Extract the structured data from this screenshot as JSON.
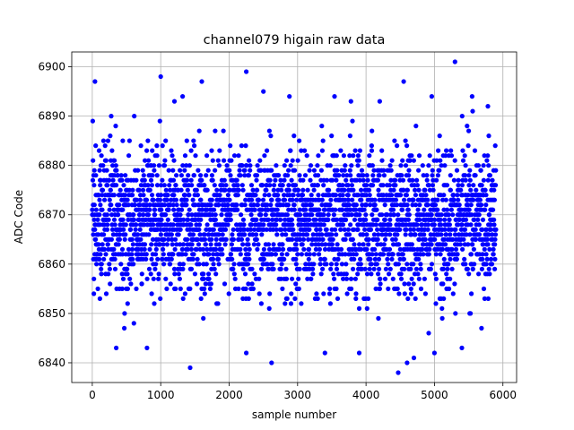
{
  "chart_data": {
    "type": "scatter",
    "title": "channel079 higain raw data",
    "xlabel": "sample number",
    "ylabel": "ADC Code",
    "xlim": [
      -300,
      6200
    ],
    "ylim": [
      6836,
      6903
    ],
    "xticks": [
      0,
      1000,
      2000,
      3000,
      4000,
      5000,
      6000
    ],
    "xtick_labels": [
      "0",
      "1000",
      "2000",
      "3000",
      "4000",
      "5000",
      "6000"
    ],
    "yticks": [
      6840,
      6850,
      6860,
      6870,
      6880,
      6890,
      6900
    ],
    "ytick_labels": [
      "6840",
      "6850",
      "6860",
      "6870",
      "6880",
      "6890",
      "6900"
    ],
    "grid": true,
    "marker_color": "#0000ff",
    "series": [
      {
        "n_points": 5900,
        "x_range": [
          0,
          5900
        ],
        "typical_band": [
          6852,
          6885
        ],
        "center": 6869,
        "notable_points": [
          {
            "x": 40,
            "y": 6897
          },
          {
            "x": 1000,
            "y": 6898
          },
          {
            "x": 1600,
            "y": 6897
          },
          {
            "x": 2250,
            "y": 6899
          },
          {
            "x": 5300,
            "y": 6901
          },
          {
            "x": 4550,
            "y": 6897
          },
          {
            "x": 1430,
            "y": 6839
          },
          {
            "x": 2620,
            "y": 6840
          },
          {
            "x": 4470,
            "y": 6838
          },
          {
            "x": 4600,
            "y": 6840
          },
          {
            "x": 4700,
            "y": 6841
          },
          {
            "x": 5000,
            "y": 6842
          },
          {
            "x": 2250,
            "y": 6842
          },
          {
            "x": 3400,
            "y": 6842
          },
          {
            "x": 3900,
            "y": 6842
          },
          {
            "x": 800,
            "y": 6843
          },
          {
            "x": 350,
            "y": 6843
          },
          {
            "x": 5400,
            "y": 6843
          },
          {
            "x": 1200,
            "y": 6893
          },
          {
            "x": 1320,
            "y": 6894
          },
          {
            "x": 2500,
            "y": 6895
          },
          {
            "x": 2880,
            "y": 6894
          },
          {
            "x": 3540,
            "y": 6894
          },
          {
            "x": 3780,
            "y": 6893
          },
          {
            "x": 4200,
            "y": 6893
          },
          {
            "x": 4960,
            "y": 6894
          },
          {
            "x": 5550,
            "y": 6894
          },
          {
            "x": 5780,
            "y": 6892
          }
        ]
      }
    ]
  }
}
